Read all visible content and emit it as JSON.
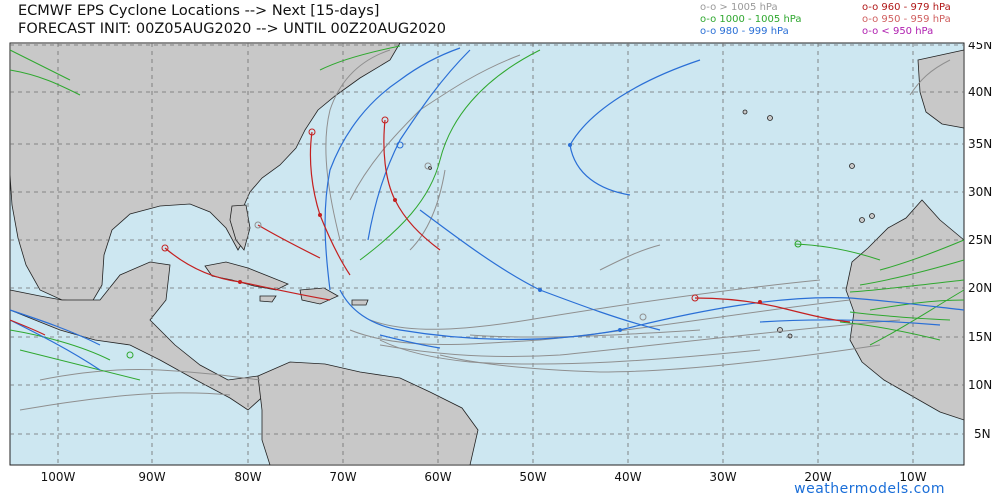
{
  "header": {
    "title_line1": "ECMWF EPS Cyclone Locations --> Next [15-days]",
    "title_line2": "FORECAST INIT: 00Z05AUG2020 --> UNTIL 00Z20AUG2020"
  },
  "legend": [
    {
      "label": "o-o > 1005 hPa",
      "color": "#9a9a9a"
    },
    {
      "label": "o-o 1000 - 1005 hPa",
      "color": "#2fa82f"
    },
    {
      "label": "o-o 980 - 999 hPa",
      "color": "#2a6fd6"
    },
    {
      "label": "o-o 960 - 979 hPa",
      "color": "#b01818"
    },
    {
      "label": "o-o 950 - 959 hPa",
      "color": "#d06060"
    },
    {
      "label": "o-o < 950 hPa",
      "color": "#b020b0"
    }
  ],
  "map": {
    "lat_labels": [
      "45N",
      "40N",
      "35N",
      "30N",
      "25N",
      "20N",
      "15N",
      "10N",
      "5N"
    ],
    "lon_labels": [
      "100W",
      "90W",
      "80W",
      "70W",
      "60W",
      "50W",
      "40W",
      "30W",
      "20W",
      "10W"
    ],
    "ocean_color": "#cde7f1",
    "land_color": "#c8c8c8"
  },
  "credit": "weathermodels.com"
}
